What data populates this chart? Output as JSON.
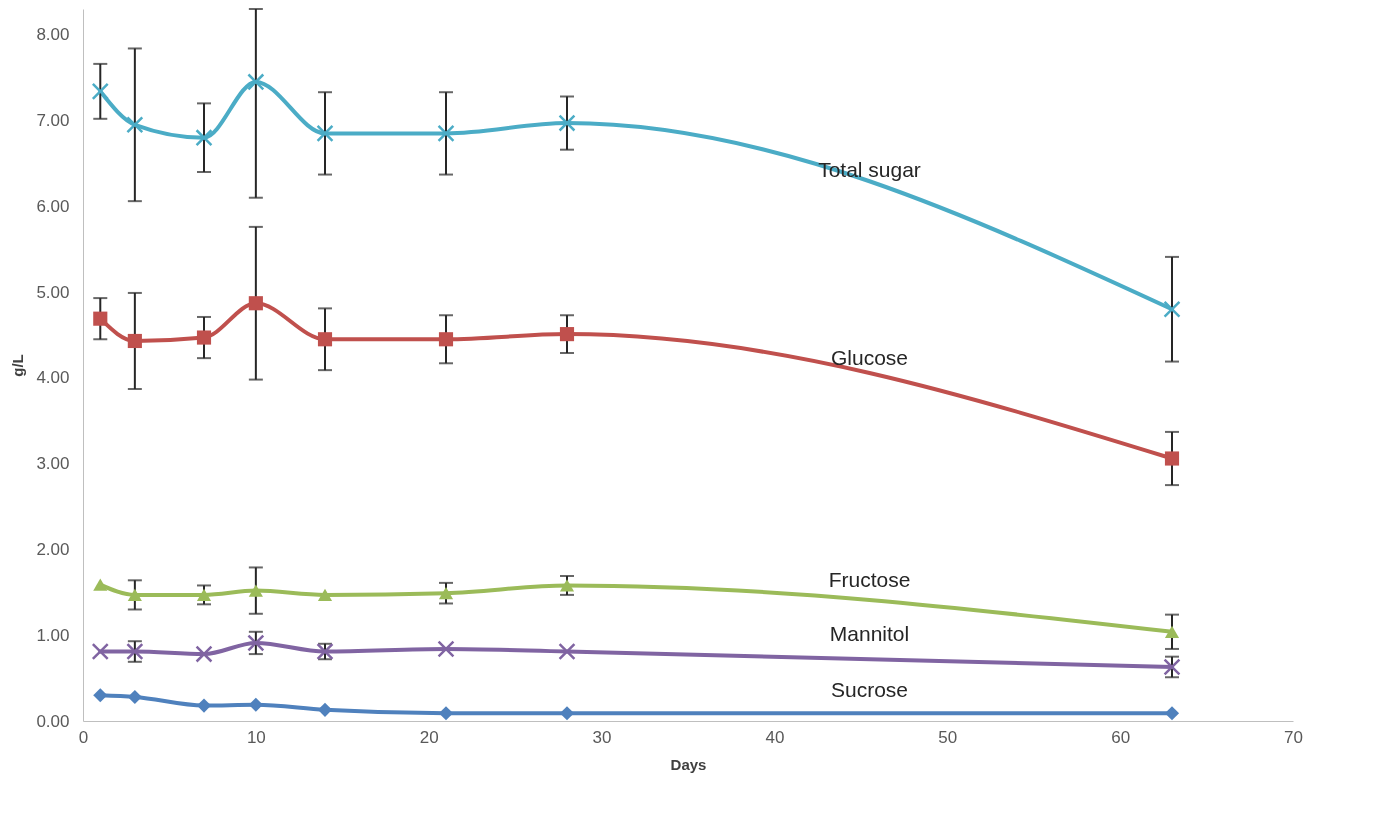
{
  "chart_data": {
    "type": "line",
    "xlabel": "Days",
    "ylabel": "g/L",
    "x": [
      1,
      3,
      7,
      10,
      14,
      21,
      28,
      63
    ],
    "xlim": [
      0,
      70
    ],
    "xticks": [
      0,
      10,
      20,
      30,
      40,
      50,
      60,
      70
    ],
    "ylim": [
      0,
      8.3
    ],
    "yticks": [
      {
        "value": 0,
        "label": "0.00"
      },
      {
        "value": 1,
        "label": "1.00"
      },
      {
        "value": 2,
        "label": "2.00"
      },
      {
        "value": 3,
        "label": "3.00"
      },
      {
        "value": 4,
        "label": "4.00"
      },
      {
        "value": 5,
        "label": "5.00"
      },
      {
        "value": 6,
        "label": "6.00"
      },
      {
        "value": 7,
        "label": "7.00"
      },
      {
        "value": 8,
        "label": "8.00"
      }
    ],
    "grid": false,
    "series": [
      {
        "name": "Total sugar",
        "color": "#4bacc6",
        "marker": "cross",
        "values": [
          7.34,
          6.95,
          6.8,
          7.45,
          6.85,
          6.85,
          6.97,
          4.8
        ],
        "errors": [
          0.32,
          0.89,
          0.4,
          [
            6.1,
            8.3
          ],
          0.48,
          0.48,
          0.31,
          0.61
        ]
      },
      {
        "name": "Glucose",
        "color": "#c0504d",
        "marker": "square",
        "values": [
          4.69,
          4.43,
          4.47,
          4.87,
          4.45,
          4.45,
          4.51,
          3.06
        ],
        "errors": [
          0.24,
          0.56,
          0.24,
          0.89,
          0.36,
          0.28,
          0.22,
          0.31
        ]
      },
      {
        "name": "Fructose",
        "color": "#9bbb59",
        "marker": "triangle",
        "values": [
          1.59,
          1.47,
          1.47,
          1.52,
          1.47,
          1.49,
          1.58,
          1.04
        ],
        "errors": [
          null,
          0.17,
          0.11,
          0.27,
          null,
          0.12,
          0.11,
          0.2
        ]
      },
      {
        "name": "Mannitol",
        "color": "#8064a2",
        "marker": "cross",
        "values": [
          0.81,
          0.81,
          0.78,
          0.91,
          0.81,
          0.84,
          0.81,
          0.63
        ],
        "errors": [
          null,
          0.12,
          null,
          0.13,
          0.09,
          null,
          null,
          0.12
        ]
      },
      {
        "name": "Sucrose",
        "color": "#4f81bd",
        "marker": "diamond",
        "values": [
          0.3,
          0.28,
          0.18,
          0.19,
          0.13,
          0.09,
          0.09,
          0.09
        ]
      }
    ]
  }
}
